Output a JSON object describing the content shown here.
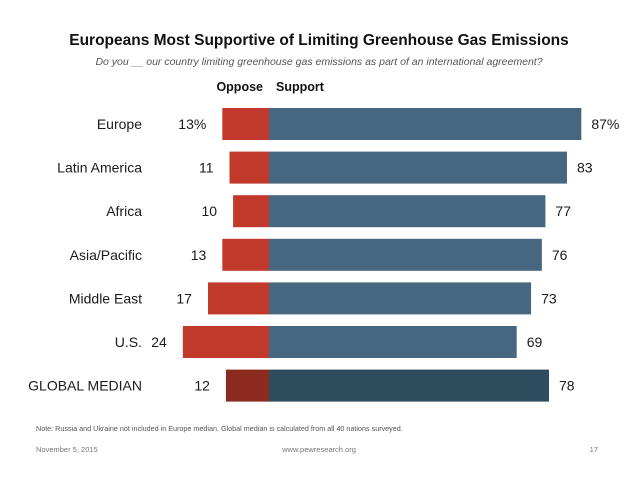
{
  "title": "Europeans Most Supportive of Limiting Greenhouse Gas Emissions",
  "subtitle": "Do you __ our country limiting greenhouse gas emissions as part of an international agreement?",
  "chart_data": {
    "type": "bar",
    "orientation": "horizontal-diverging",
    "categories": [
      "Europe",
      "Latin America",
      "Africa",
      "Asia/Pacific",
      "Middle East",
      "U.S.",
      "GLOBAL MEDIAN"
    ],
    "series": [
      {
        "name": "Oppose",
        "values": [
          13,
          11,
          10,
          13,
          17,
          24,
          12
        ],
        "color": "#c0392b"
      },
      {
        "name": "Support",
        "values": [
          87,
          83,
          77,
          76,
          73,
          69,
          78
        ],
        "color": "#46677f"
      }
    ],
    "value_labels": {
      "oppose": [
        "13%",
        "11",
        "10",
        "13",
        "17",
        "24",
        "12"
      ],
      "support": [
        "87%",
        "83",
        "77",
        "76",
        "73",
        "69",
        "78"
      ]
    },
    "highlight_category": "GLOBAL MEDIAN",
    "highlight_colors": {
      "oppose": "#8b2a1e",
      "support": "#2f4b5e"
    },
    "legend": [
      "Oppose",
      "Support"
    ],
    "xlim": [
      -24,
      87
    ]
  },
  "note": "Note: Russia and Ukraine not included in Europe median. Global median is calculated from all 40 nations surveyed.",
  "footer": {
    "date": "November 5, 2015",
    "url": "www.pewresearch.org",
    "page": "17"
  }
}
